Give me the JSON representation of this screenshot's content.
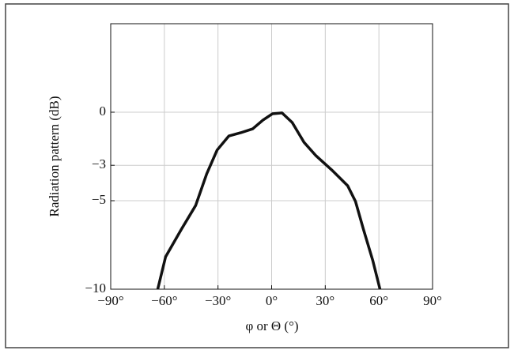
{
  "chart_data": {
    "type": "line",
    "x_label": "φ or Θ (°)",
    "y_label": "Radiation pattern (dB)",
    "x": [
      -63.7,
      -59.3,
      -50.4,
      -42.5,
      -36.3,
      -30.5,
      -23.9,
      -17.3,
      -10.6,
      -4.9,
      0.4,
      5.8,
      11.5,
      18.1,
      24.8,
      33.6,
      42.5,
      46.9,
      51.3,
      56.6,
      60.6
    ],
    "series": [
      {
        "color": "#111111",
        "values": [
          -10,
          -8.17,
          -6.6,
          -5.27,
          -3.48,
          -2.14,
          -1.34,
          -1.16,
          -0.94,
          -0.45,
          -0.09,
          -0.04,
          -0.58,
          -1.7,
          -2.46,
          -3.26,
          -4.15,
          -5.04,
          -6.6,
          -8.39,
          -10
        ]
      }
    ],
    "xlim": [
      -90,
      90
    ],
    "xticks": [
      {
        "value": -90,
        "label": "−90°"
      },
      {
        "value": -60,
        "label": "−60°"
      },
      {
        "value": -30,
        "label": "−30°"
      },
      {
        "value": 0,
        "label": "0°"
      },
      {
        "value": 30,
        "label": "30°"
      },
      {
        "value": 60,
        "label": "60°"
      },
      {
        "value": 90,
        "label": "90°"
      }
    ],
    "ylim": [
      -10,
      5
    ],
    "yticks": [
      {
        "value": -10,
        "label": "−10"
      },
      {
        "value": -5,
        "label": "−5"
      },
      {
        "value": -3,
        "label": "−3"
      },
      0
    ],
    "grid": true
  }
}
